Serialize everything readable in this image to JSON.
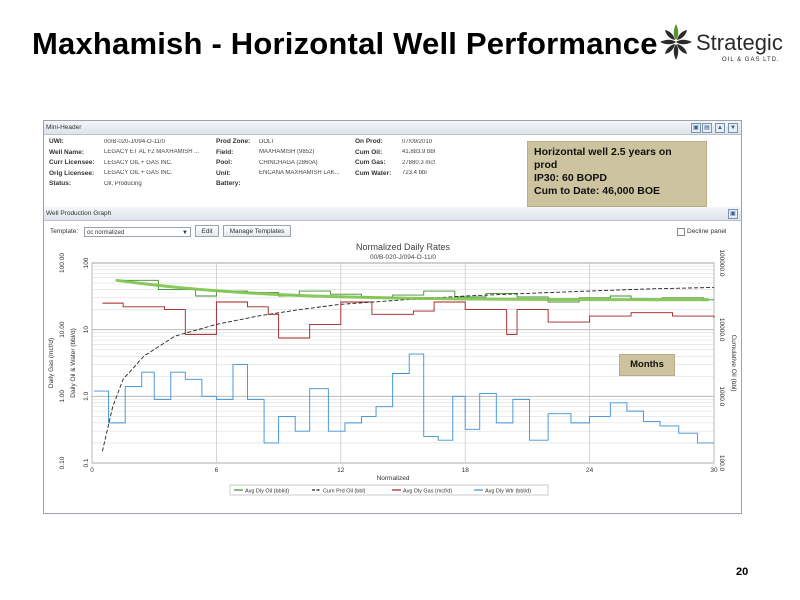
{
  "slide": {
    "title": "Maxhamish - Horizontal Well Performance",
    "page_number": "20",
    "logo": {
      "name": "Strategic",
      "subtitle": "OIL & GAS LTD."
    }
  },
  "mini_header": {
    "title": "Mini-Header",
    "fields": [
      {
        "label": "UWI:",
        "value": "00/B-020-J/094-O-11/0"
      },
      {
        "label": "Well Name:",
        "value": "LEGACY ET AL F2 MAXHAMISH ..."
      },
      {
        "label": "Curr Licensee:",
        "value": "LEGACY OIL + GAS INC."
      },
      {
        "label": "Orig Licensee:",
        "value": "LEGACY OIL + GAS INC."
      },
      {
        "label": "Status:",
        "value": "Oil, Producing"
      },
      {
        "label": "Prod Zone:",
        "value": "DOLT"
      },
      {
        "label": "Field:",
        "value": "MAXHAMISH (9852)"
      },
      {
        "label": "Pool:",
        "value": "CHINCHAGA (2860A)"
      },
      {
        "label": "Unit:",
        "value": "ENCANA MAXHAMISH LAK..."
      },
      {
        "label": "Battery:",
        "value": ""
      },
      {
        "label": "On Prod:",
        "value": "07/09/2010"
      },
      {
        "label": "Cum Oil:",
        "value": "41,883.9 bbl"
      },
      {
        "label": "Cum Gas:",
        "value": "27880.3 mcf"
      },
      {
        "label": "Cum Water:",
        "value": "723.4 bbl"
      }
    ]
  },
  "callout": {
    "lines": [
      "Horizontal well 2.5 years on",
      "prod",
      "IP30: 60 BOPD",
      "Cum to Date: 46,000 BOE"
    ]
  },
  "graph_panel": {
    "title": "Well Production Graph",
    "template_label": "Template:",
    "template_value": "oc normalized",
    "edit_label": "Edit",
    "manage_label": "Manage Templates",
    "decline_label": "Decline panel"
  },
  "chart_data": {
    "type": "line",
    "title": "Normalized Daily Rates",
    "subtitle": "00/B-020-J/094-O-11/0",
    "xlabel": "Normalized",
    "xlim": [
      0,
      30
    ],
    "x_ticks": [
      "0",
      "6",
      "12",
      "18",
      "24",
      "30"
    ],
    "ylabel_left_outer": "Daily Gas (mcf/d)",
    "ylabel_left_inner": "Daily Oil & Water (bbl/d)",
    "ylabel_right": "Cumulative Oil (bbl)",
    "y_ticks_left_outer": [
      "100.00",
      "10.00",
      "1.00",
      "0.10"
    ],
    "y_ticks_left_inner": [
      "100",
      "10",
      "1.0",
      "0.1"
    ],
    "y_ticks_right": [
      "100000.0",
      "10000.0",
      "1000.0",
      "100.0"
    ],
    "y_scale": "log",
    "grid": true,
    "months_tag": "Months",
    "legend_placement": "bottom",
    "series": [
      {
        "name": "Avg Dly Oil (bbl/d)",
        "color": "#3b8f2e",
        "x": [
          1.5,
          3.2,
          5.0,
          6.0,
          7.5,
          9.0,
          10.0,
          11.5,
          13.0,
          14.5,
          16.0,
          17.5,
          19.0,
          20.5,
          22.0,
          23.5,
          25.0,
          26.0,
          27.5,
          29.5
        ],
        "y": [
          55,
          40,
          32,
          38,
          36,
          32,
          38,
          34,
          31,
          33,
          38,
          31,
          35,
          31,
          26,
          30,
          32,
          29,
          30,
          28
        ]
      },
      {
        "name": "Cum Prd Oil (bbl)",
        "color": "#222222",
        "x": [
          0.5,
          1.0,
          1.5,
          2.5,
          4,
          6,
          8,
          10,
          12,
          15,
          18,
          21,
          24,
          27,
          30
        ],
        "y": [
          150,
          700,
          1800,
          4000,
          8000,
          12000,
          16000,
          20000,
          24000,
          28000,
          32000,
          35000,
          38000,
          41000,
          43000
        ]
      },
      {
        "name": "Avg Dly Gas (mcf/d)",
        "color": "#a11e1e",
        "x": [
          0.5,
          1.5,
          3.5,
          4.5,
          6.0,
          7.5,
          8.5,
          9.0,
          10.5,
          12.0,
          13.5,
          15.5,
          16.5,
          18.0,
          20.0,
          20.5,
          22.0,
          24.0,
          26.0,
          28.0,
          30.0
        ],
        "y": [
          25,
          22,
          20,
          8.5,
          26,
          22,
          17,
          7.5,
          12,
          26,
          17,
          19,
          26,
          20,
          8.5,
          20,
          13,
          16,
          18,
          16,
          15
        ]
      },
      {
        "name": "Avg Dly Wtr (bbl/d)",
        "color": "#3b8fd8",
        "x": [
          0.1,
          0.8,
          1.6,
          2.4,
          3.0,
          3.8,
          4.5,
          5.3,
          6.0,
          6.8,
          7.5,
          8.3,
          9.0,
          9.8,
          10.5,
          11.4,
          12.2,
          13.0,
          13.7,
          14.5,
          15.3,
          16.0,
          16.7,
          17.4,
          18.0,
          18.7,
          19.5,
          20.3,
          21.1,
          22.0,
          23.1,
          24.0,
          25.0,
          25.8,
          26.6,
          27.4,
          28.3,
          29.2
        ],
        "y": [
          1.2,
          0.4,
          1.4,
          2.3,
          0.9,
          2.3,
          1.8,
          1.0,
          0.9,
          3.0,
          0.9,
          0.2,
          0.5,
          0.3,
          1.3,
          0.3,
          0.4,
          0.5,
          0.7,
          2.2,
          4.3,
          0.25,
          0.22,
          1.0,
          0.32,
          1.1,
          0.4,
          0.9,
          0.22,
          0.55,
          0.4,
          0.5,
          0.8,
          0.6,
          0.42,
          0.36,
          0.28,
          0.2
        ]
      }
    ]
  }
}
